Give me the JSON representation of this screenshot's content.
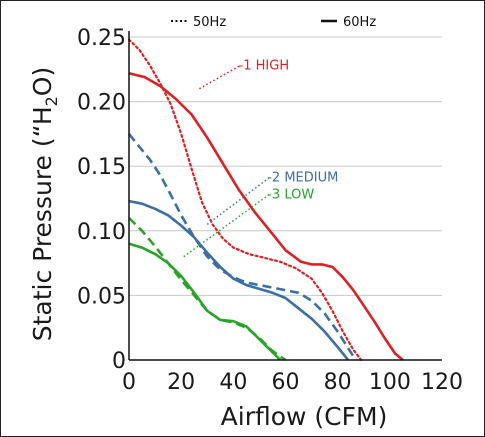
{
  "chart_data": {
    "type": "line",
    "xlabel": "Airflow (CFM)",
    "ylabel_prefix": "Static Pressure (“H",
    "ylabel_sub": "2",
    "ylabel_suffix": "O)",
    "xlim": [
      0,
      120
    ],
    "ylim": [
      0,
      0.25
    ],
    "x_ticks": [
      0,
      20,
      40,
      60,
      80,
      100,
      120
    ],
    "x_tick_labels": [
      "0",
      "20",
      "40",
      "60",
      "80",
      "100",
      "120"
    ],
    "y_ticks": [
      0,
      0.05,
      0.1,
      0.15,
      0.2,
      0.25
    ],
    "y_tick_labels": [
      "0",
      "0.05",
      "0.10",
      "0.15",
      "0.20",
      "0.25"
    ],
    "grid": "horizontal",
    "legend": [
      {
        "label": "50Hz",
        "style": "dotted"
      },
      {
        "label": "60Hz",
        "style": "solid"
      }
    ],
    "series_labels": [
      {
        "text": "-1 HIGH",
        "color": "#e02020",
        "anchor": [
          27,
          0.21
        ],
        "pos": [
          42,
          0.225
        ]
      },
      {
        "text": "-2 MEDIUM",
        "color": "#3a6fa8",
        "anchor": [
          30,
          0.105
        ],
        "pos": [
          53,
          0.138
        ]
      },
      {
        "text": "-3 LOW",
        "color": "#28a428",
        "anchor": [
          21,
          0.08
        ],
        "pos": [
          53,
          0.125
        ]
      }
    ],
    "series": [
      {
        "color": "#e02020",
        "style": "solid",
        "x": [
          0,
          6,
          12,
          18,
          24,
          30,
          36,
          42,
          48,
          54,
          60,
          66,
          70,
          74,
          78,
          82,
          86,
          90,
          94,
          98,
          102,
          105
        ],
        "y": [
          0.222,
          0.219,
          0.212,
          0.202,
          0.19,
          0.172,
          0.152,
          0.132,
          0.115,
          0.1,
          0.085,
          0.076,
          0.074,
          0.074,
          0.072,
          0.064,
          0.054,
          0.042,
          0.03,
          0.017,
          0.005,
          0
        ]
      },
      {
        "color": "#e02020",
        "style": "dotted",
        "x": [
          0,
          4,
          8,
          12,
          16,
          20,
          24,
          28,
          32,
          36,
          40,
          46,
          52,
          58,
          64,
          70,
          74,
          78,
          82,
          86,
          89
        ],
        "y": [
          0.248,
          0.24,
          0.228,
          0.214,
          0.198,
          0.175,
          0.148,
          0.122,
          0.105,
          0.094,
          0.087,
          0.082,
          0.079,
          0.076,
          0.071,
          0.063,
          0.052,
          0.038,
          0.022,
          0.008,
          0
        ]
      },
      {
        "color": "#3a6fa8",
        "style": "solid",
        "x": [
          0,
          5,
          10,
          15,
          20,
          25,
          30,
          35,
          40,
          45,
          50,
          55,
          60,
          65,
          70,
          75,
          80,
          84
        ],
        "y": [
          0.123,
          0.121,
          0.117,
          0.112,
          0.104,
          0.095,
          0.083,
          0.072,
          0.063,
          0.058,
          0.055,
          0.052,
          0.048,
          0.04,
          0.032,
          0.022,
          0.01,
          0
        ]
      },
      {
        "color": "#3a6fa8",
        "style": "dashed",
        "x": [
          0,
          4,
          8,
          12,
          16,
          20,
          25,
          30,
          35,
          40,
          45,
          50,
          55,
          60,
          65,
          70,
          75,
          80,
          85,
          87
        ],
        "y": [
          0.175,
          0.165,
          0.155,
          0.143,
          0.128,
          0.112,
          0.095,
          0.08,
          0.07,
          0.064,
          0.06,
          0.058,
          0.056,
          0.054,
          0.052,
          0.046,
          0.036,
          0.022,
          0.006,
          0
        ]
      },
      {
        "color": "#28a428",
        "style": "solid",
        "x": [
          0,
          5,
          10,
          15,
          20,
          25,
          30,
          35,
          40,
          45,
          50,
          55,
          58
        ],
        "y": [
          0.09,
          0.087,
          0.082,
          0.075,
          0.065,
          0.052,
          0.038,
          0.031,
          0.03,
          0.026,
          0.016,
          0.006,
          0
        ]
      },
      {
        "color": "#28a428",
        "style": "dashed",
        "x": [
          0,
          5,
          10,
          15,
          20,
          25,
          30,
          35,
          40,
          45,
          50,
          55,
          60
        ],
        "y": [
          0.11,
          0.1,
          0.088,
          0.075,
          0.062,
          0.05,
          0.038,
          0.031,
          0.029,
          0.025,
          0.017,
          0.007,
          0
        ]
      }
    ]
  }
}
